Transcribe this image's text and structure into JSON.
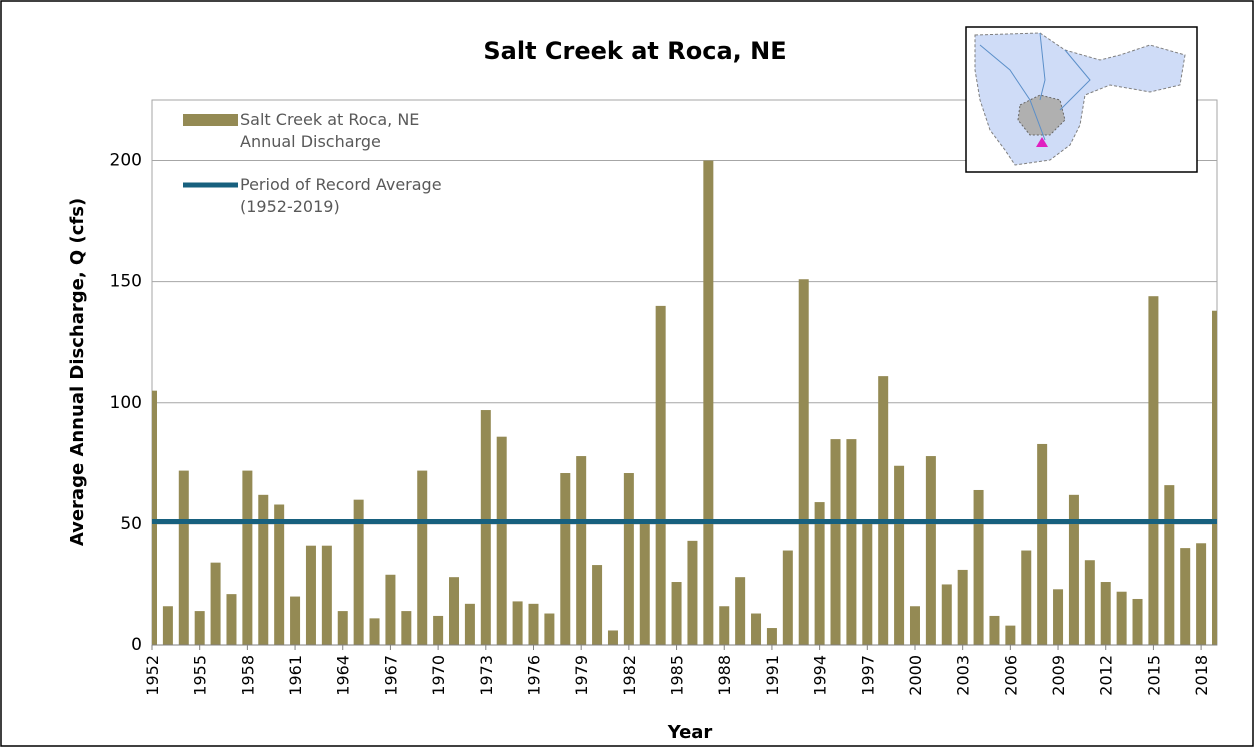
{
  "chart_data": {
    "type": "bar",
    "title": "Salt Creek at Roca, NE",
    "x_label": "Year",
    "y_label": "Average Annual Discharge, Q (cfs)",
    "categories": [
      "1952",
      null,
      null,
      "1955",
      null,
      null,
      "1958",
      null,
      null,
      "1961",
      null,
      null,
      "1964",
      null,
      null,
      "1967",
      null,
      null,
      "1970",
      null,
      null,
      "1973",
      null,
      null,
      "1976",
      null,
      null,
      "1979",
      null,
      null,
      "1982",
      null,
      null,
      "1985",
      null,
      null,
      "1988",
      null,
      null,
      "1991",
      null,
      null,
      "1994",
      null,
      null,
      "1997",
      null,
      null,
      "2000",
      null,
      null,
      "2003",
      null,
      null,
      "2006",
      null,
      null,
      "2009",
      null,
      null,
      "2012",
      null,
      null,
      "2015",
      null,
      null,
      "2018",
      null
    ],
    "series": [
      {
        "name": "Salt Creek at Roca, NE\nAnnual Discharge",
        "color": "#948a54",
        "values": [
          105,
          16,
          72,
          14,
          34,
          21,
          72,
          62,
          58,
          20,
          41,
          41,
          14,
          60,
          11,
          29,
          14,
          72,
          12,
          28,
          17,
          97,
          86,
          18,
          17,
          13,
          71,
          78,
          33,
          6,
          71,
          52,
          140,
          26,
          43,
          200,
          16,
          28,
          13,
          7,
          39,
          151,
          59,
          85,
          85,
          52,
          111,
          74,
          16,
          78,
          25,
          31,
          64,
          12,
          8,
          39,
          83,
          23,
          62,
          35,
          26,
          22,
          19,
          144,
          66,
          40,
          42,
          138
        ]
      }
    ],
    "reference_line": {
      "name": "Period of Record Average\n(1952-2019)",
      "value": 51,
      "color": "#17607e"
    },
    "ylim": [
      0,
      225
    ],
    "yticks": [
      0,
      50,
      100,
      150,
      200
    ],
    "grid": true
  }
}
